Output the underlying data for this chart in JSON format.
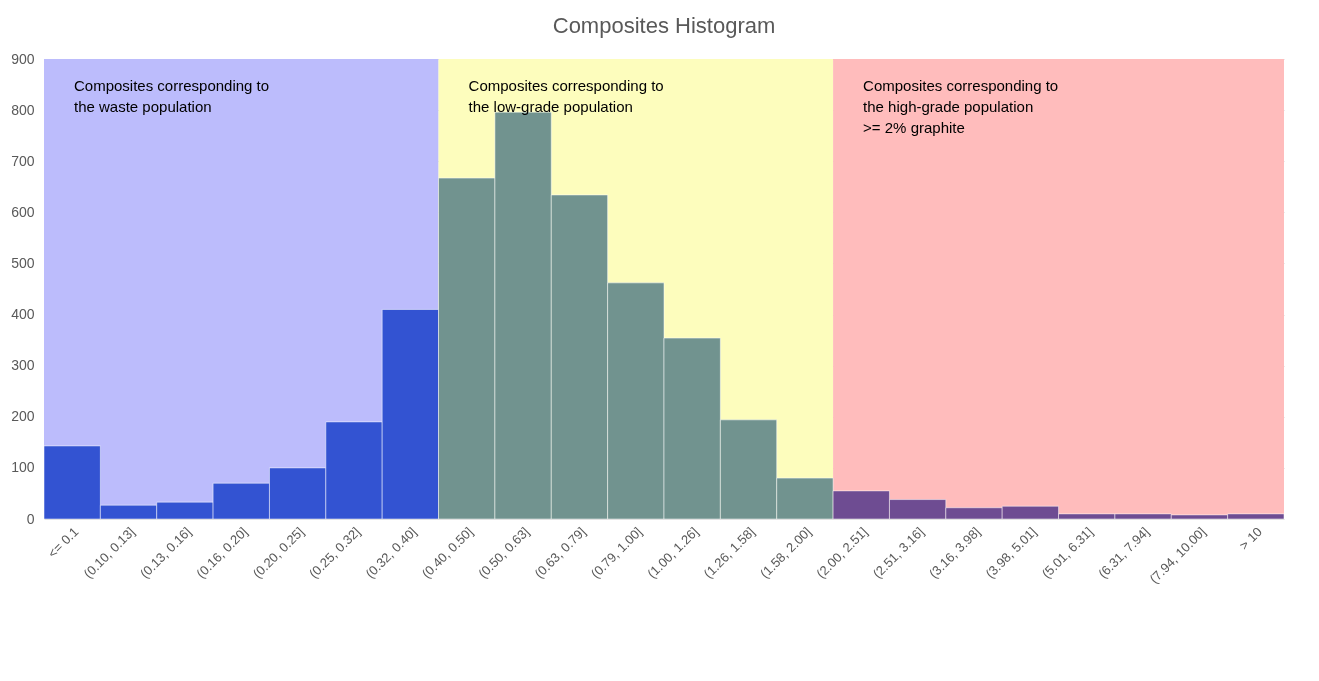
{
  "chart_data": {
    "type": "bar",
    "title": "Composites Histogram",
    "categories": [
      "<= 0.1",
      "(0.10, 0.13]",
      "(0.13, 0.16]",
      "(0.16, 0.20]",
      "(0.20, 0.25]",
      "(0.25, 0.32]",
      "(0.32, 0.40]",
      "(0.40, 0.50]",
      "(0.50, 0.63]",
      "(0.63, 0.79]",
      "(0.79, 1.00]",
      "(1.00, 1.26]",
      "(1.26, 1.58]",
      "(1.58, 2.00]",
      "(2.00, 2.51]",
      "(2.51, 3.16]",
      "(3.16, 3.98]",
      "(3.98, 5.01]",
      "(5.01, 6.31]",
      "(6.31, 7.94]",
      "(7.94, 10.00]",
      "> 10"
    ],
    "values": [
      143,
      27,
      33,
      70,
      100,
      190,
      410,
      667,
      796,
      634,
      462,
      354,
      194,
      80,
      55,
      38,
      22,
      25,
      10,
      10,
      8,
      10
    ],
    "colors": [
      "#3353d2",
      "#3353d2",
      "#3353d2",
      "#3353d2",
      "#3353d2",
      "#3353d2",
      "#3353d2",
      "#71938f",
      "#71938f",
      "#71938f",
      "#71938f",
      "#71938f",
      "#71938f",
      "#71938f",
      "#6e4c92",
      "#6e4c92",
      "#6e4c92",
      "#6e4c92",
      "#6e4c92",
      "#6e4c92",
      "#6e4c92",
      "#6e4c92"
    ],
    "ylim": [
      0,
      900
    ],
    "yticks": [
      0,
      100,
      200,
      300,
      400,
      500,
      600,
      700,
      800,
      900
    ],
    "grid": "y",
    "bands": [
      {
        "axis": "x",
        "from": "<= 0.1",
        "to": "(0.32, 0.40]",
        "label": "Composites corresponding to\nthe waste population",
        "color": "#bcbcfc"
      },
      {
        "axis": "x",
        "from": "(0.40, 0.50]",
        "to": "(1.58, 2.00]",
        "label": "Composites corresponding to\nthe low-grade population",
        "color": "#fdfdbd"
      },
      {
        "axis": "x",
        "from": "(2.00, 2.51]",
        "to": "> 10",
        "label": "Composites corresponding to\nthe high-grade population\n>= 2% graphite",
        "color": "#ffbcbc"
      }
    ]
  }
}
